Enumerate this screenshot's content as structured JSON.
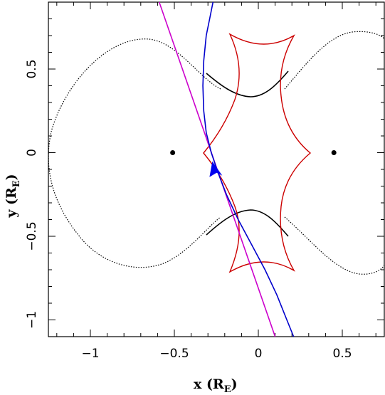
{
  "chart_data": {
    "type": "line",
    "title": "",
    "xlabel": "x (R",
    "xlabel_sub": "E",
    "xlabel_close": ")",
    "ylabel": "y (R",
    "ylabel_sub": "E",
    "ylabel_close": ")",
    "xlim": [
      -1.25,
      0.75
    ],
    "ylim": [
      -1.1,
      0.9
    ],
    "x_ticks": [
      -1,
      -0.5,
      0,
      0.5
    ],
    "x_tick_labels": [
      "−1",
      "−0.5",
      "0",
      "0.5"
    ],
    "y_ticks": [
      -1,
      -0.5,
      0,
      0.5
    ],
    "y_tick_labels": [
      "−1",
      "−0.5",
      "0",
      "0.5"
    ],
    "grid": false,
    "lenses": [
      {
        "x": -0.51,
        "y": 0.0
      },
      {
        "x": 0.45,
        "y": 0.0
      }
    ],
    "colors": {
      "critical_curve": "#000000",
      "caustic": "#cc0000",
      "trajectory_1": "#cc00cc",
      "trajectory_2": "#0000cc",
      "arrow": "#0000ee"
    },
    "magenta_line": {
      "x": [
        -0.59,
        0.1
      ],
      "y": [
        0.9,
        -1.1
      ]
    },
    "blue_curve": {
      "x": [
        -0.27,
        -0.29,
        -0.31,
        -0.325,
        -0.33,
        -0.325,
        -0.31,
        -0.28,
        -0.24,
        -0.19,
        -0.12,
        -0.04,
        0.04,
        0.11,
        0.17,
        0.21
      ],
      "y": [
        0.9,
        0.8,
        0.7,
        0.55,
        0.4,
        0.25,
        0.12,
        0.0,
        -0.12,
        -0.25,
        -0.4,
        -0.55,
        -0.7,
        -0.85,
        -1.0,
        -1.1
      ]
    },
    "arrow": {
      "x": -0.24,
      "y": -0.12,
      "direction": "up-left"
    }
  }
}
